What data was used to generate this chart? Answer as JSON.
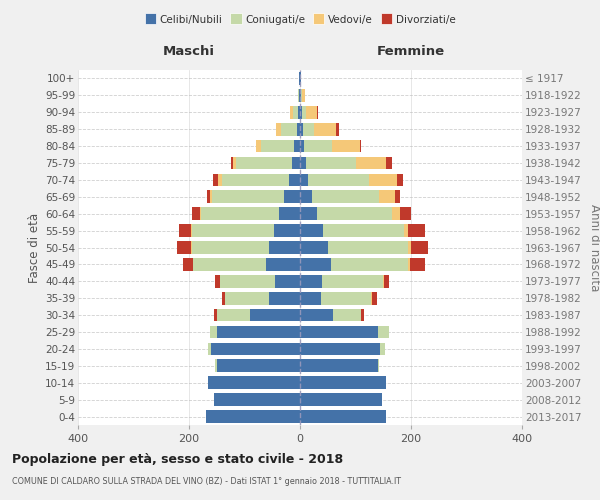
{
  "age_groups": [
    "0-4",
    "5-9",
    "10-14",
    "15-19",
    "20-24",
    "25-29",
    "30-34",
    "35-39",
    "40-44",
    "45-49",
    "50-54",
    "55-59",
    "60-64",
    "65-69",
    "70-74",
    "75-79",
    "80-84",
    "85-89",
    "90-94",
    "95-99",
    "100+"
  ],
  "birth_years": [
    "2013-2017",
    "2008-2012",
    "2003-2007",
    "1998-2002",
    "1993-1997",
    "1988-1992",
    "1983-1987",
    "1978-1982",
    "1973-1977",
    "1968-1972",
    "1963-1967",
    "1958-1962",
    "1953-1957",
    "1948-1952",
    "1943-1947",
    "1938-1942",
    "1933-1937",
    "1928-1932",
    "1923-1927",
    "1918-1922",
    "≤ 1917"
  ],
  "males": {
    "celibi": [
      170,
      155,
      165,
      150,
      160,
      150,
      90,
      55,
      45,
      62,
      55,
      46,
      38,
      28,
      20,
      15,
      10,
      5,
      3,
      1,
      1
    ],
    "coniugati": [
      0,
      0,
      0,
      3,
      5,
      12,
      60,
      80,
      100,
      130,
      140,
      148,
      140,
      130,
      120,
      100,
      60,
      30,
      10,
      2,
      0
    ],
    "vedovi": [
      0,
      0,
      0,
      0,
      0,
      0,
      0,
      0,
      0,
      1,
      1,
      2,
      2,
      5,
      8,
      5,
      10,
      8,
      5,
      1,
      0
    ],
    "divorziati": [
      0,
      0,
      0,
      0,
      0,
      0,
      5,
      5,
      8,
      18,
      25,
      22,
      15,
      5,
      8,
      5,
      0,
      0,
      0,
      0,
      0
    ]
  },
  "females": {
    "nubili": [
      155,
      148,
      155,
      140,
      145,
      140,
      60,
      38,
      40,
      55,
      50,
      42,
      30,
      22,
      15,
      10,
      8,
      5,
      3,
      2,
      1
    ],
    "coniugate": [
      0,
      0,
      0,
      3,
      8,
      20,
      50,
      90,
      110,
      140,
      145,
      145,
      135,
      120,
      110,
      90,
      50,
      20,
      8,
      2,
      0
    ],
    "vedove": [
      0,
      0,
      0,
      0,
      0,
      0,
      0,
      2,
      2,
      3,
      5,
      8,
      15,
      30,
      50,
      55,
      50,
      40,
      20,
      5,
      0
    ],
    "divorziate": [
      0,
      0,
      0,
      0,
      0,
      0,
      5,
      8,
      8,
      28,
      30,
      30,
      20,
      8,
      10,
      10,
      2,
      5,
      2,
      0,
      0
    ]
  },
  "colors": {
    "celibi_nubili": "#4472a8",
    "coniugati": "#c5d9a8",
    "vedovi": "#f5c878",
    "divorziati": "#c0392b"
  },
  "title": "Popolazione per età, sesso e stato civile - 2018",
  "subtitle": "COMUNE DI CALDARO SULLA STRADA DEL VINO (BZ) - Dati ISTAT 1° gennaio 2018 - TUTTITALIA.IT",
  "xlabel_left": "Maschi",
  "xlabel_right": "Femmine",
  "ylabel_left": "Fasce di età",
  "ylabel_right": "Anni di nascita",
  "xlim": 400,
  "legend_labels": [
    "Celibi/Nubili",
    "Coniugati/e",
    "Vedovi/e",
    "Divorziati/e"
  ],
  "background_color": "#f0f0f0",
  "plot_bg": "#ffffff",
  "grid_color": "#bbbbbb"
}
